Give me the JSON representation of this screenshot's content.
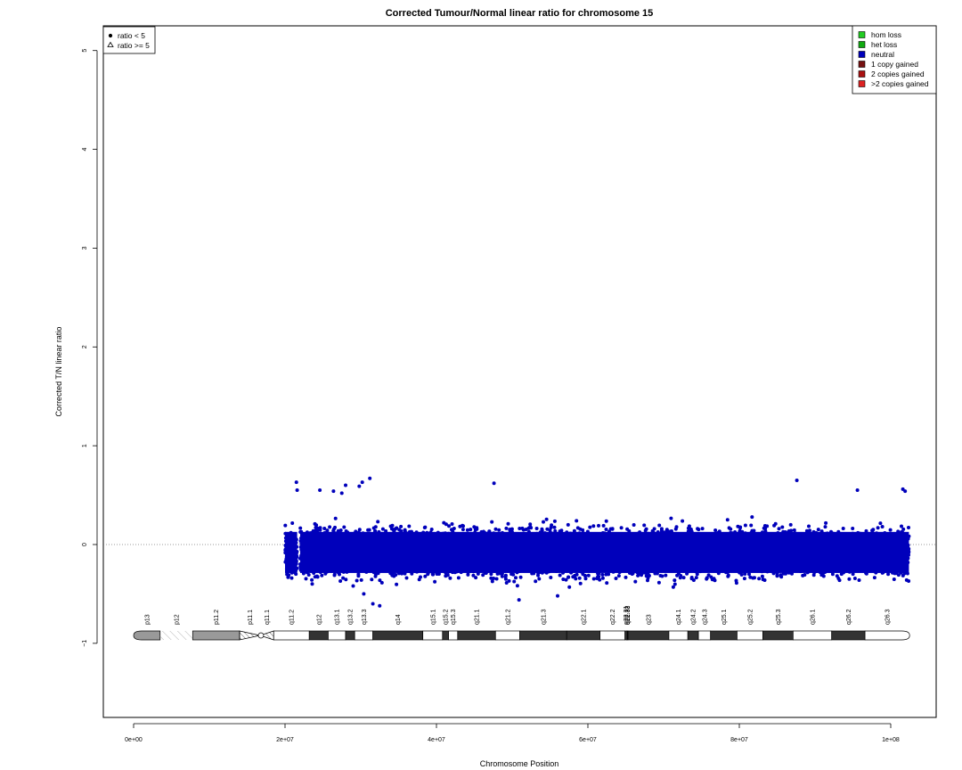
{
  "chart_data": {
    "type": "scatter",
    "title": "Corrected Tumour/Normal linear ratio for chromosome  15",
    "xlabel": "Chromosome Position",
    "ylabel": "Corrected T/N linear ratio",
    "x_ticks": [
      {
        "value": 0,
        "label": "0e+00"
      },
      {
        "value": 20000000,
        "label": "2e+07"
      },
      {
        "value": 40000000,
        "label": "4e+07"
      },
      {
        "value": 60000000,
        "label": "6e+07"
      },
      {
        "value": 80000000,
        "label": "8e+07"
      },
      {
        "value": 100000000,
        "label": "1e+08"
      }
    ],
    "y_ticks": [
      {
        "value": -1,
        "label": "−1"
      },
      {
        "value": 0,
        "label": "0"
      },
      {
        "value": 1,
        "label": "1"
      },
      {
        "value": 2,
        "label": "2"
      },
      {
        "value": 3,
        "label": "3"
      },
      {
        "value": 4,
        "label": "4"
      },
      {
        "value": 5,
        "label": "5"
      }
    ],
    "xlim": [
      -4000000,
      106000000
    ],
    "ylim": [
      -1.75,
      5.25
    ],
    "reference_line_y": 0,
    "shape_legend": [
      {
        "symbol": "circle",
        "label": "ratio < 5"
      },
      {
        "symbol": "triangle",
        "label": "ratio >= 5"
      }
    ],
    "color_legend": [
      {
        "label": "hom loss",
        "color": "#22cc22"
      },
      {
        "label": "het loss",
        "color": "#11aa11"
      },
      {
        "label": "neutral",
        "color": "#0000bb"
      },
      {
        "label": "1 copy gained",
        "color": "#771111"
      },
      {
        "label": "2 copies gained",
        "color": "#aa1111"
      },
      {
        "label": ">2 copies gained",
        "color": "#dd2222"
      }
    ],
    "series": [
      {
        "name": "neutral",
        "color": "#0000bb",
        "segments": [
          {
            "x_start": 20000000,
            "x_end": 21600000,
            "center": -0.08,
            "spread": 0.26
          },
          {
            "x_start": 22000000,
            "x_end": 102400000,
            "center": -0.08,
            "spread": 0.26
          }
        ],
        "outliers": [
          {
            "x": 21500000,
            "y": 0.63
          },
          {
            "x": 21600000,
            "y": 0.55
          },
          {
            "x": 24600000,
            "y": 0.55
          },
          {
            "x": 26400000,
            "y": 0.54
          },
          {
            "x": 27500000,
            "y": 0.52
          },
          {
            "x": 28000000,
            "y": 0.6
          },
          {
            "x": 29800000,
            "y": 0.59
          },
          {
            "x": 30200000,
            "y": 0.63
          },
          {
            "x": 31200000,
            "y": 0.67
          },
          {
            "x": 47600000,
            "y": 0.62
          },
          {
            "x": 87600000,
            "y": 0.65
          },
          {
            "x": 95600000,
            "y": 0.55
          },
          {
            "x": 101600000,
            "y": 0.56
          },
          {
            "x": 101900000,
            "y": 0.54
          },
          {
            "x": 31600000,
            "y": -0.6
          },
          {
            "x": 32500000,
            "y": -0.62
          },
          {
            "x": 50900000,
            "y": -0.56
          },
          {
            "x": 30400000,
            "y": -0.5
          },
          {
            "x": 56000000,
            "y": -0.52
          }
        ]
      }
    ],
    "ideogram": {
      "y": -0.92,
      "bands": [
        {
          "name": "p13",
          "start": 0,
          "end": 3500000,
          "stain": "gvar"
        },
        {
          "name": "p12",
          "start": 3500000,
          "end": 7800000,
          "stain": "stalk"
        },
        {
          "name": "p11.2",
          "start": 7800000,
          "end": 14000000,
          "stain": "gvar"
        },
        {
          "name": "p11.1",
          "start": 14000000,
          "end": 16700000,
          "stain": "acen"
        },
        {
          "name": "q11.1",
          "start": 16700000,
          "end": 18500000,
          "stain": "acen"
        },
        {
          "name": "q11.2",
          "start": 18500000,
          "end": 23200000,
          "stain": "gneg"
        },
        {
          "name": "q12",
          "start": 23200000,
          "end": 25700000,
          "stain": "gpos"
        },
        {
          "name": "q13.1",
          "start": 25700000,
          "end": 28000000,
          "stain": "gneg"
        },
        {
          "name": "q13.2",
          "start": 28000000,
          "end": 29200000,
          "stain": "gpos"
        },
        {
          "name": "q13.3",
          "start": 29200000,
          "end": 31600000,
          "stain": "gneg"
        },
        {
          "name": "q14",
          "start": 31600000,
          "end": 38200000,
          "stain": "gpos"
        },
        {
          "name": "q15.1",
          "start": 38200000,
          "end": 40800000,
          "stain": "gneg"
        },
        {
          "name": "q15.2",
          "start": 40800000,
          "end": 41600000,
          "stain": "gpos"
        },
        {
          "name": "q15.3",
          "start": 41600000,
          "end": 42800000,
          "stain": "gneg"
        },
        {
          "name": "q21.1",
          "start": 42800000,
          "end": 47800000,
          "stain": "gpos"
        },
        {
          "name": "q21.2",
          "start": 47800000,
          "end": 51000000,
          "stain": "gneg"
        },
        {
          "name": "q21.3",
          "start": 51000000,
          "end": 57200000,
          "stain": "gpos"
        },
        {
          "name": "q22.1",
          "start": 57200000,
          "end": 61600000,
          "stain": "gpos"
        },
        {
          "name": "q22.2",
          "start": 61600000,
          "end": 64900000,
          "stain": "gneg"
        },
        {
          "name": "q22.31",
          "start": 64900000,
          "end": 65100000,
          "stain": "gpos"
        },
        {
          "name": "q22.32",
          "start": 65100000,
          "end": 65200000,
          "stain": "gneg"
        },
        {
          "name": "q22.33",
          "start": 65200000,
          "end": 65300000,
          "stain": "gpos"
        },
        {
          "name": "q23",
          "start": 65300000,
          "end": 70700000,
          "stain": "gpos"
        },
        {
          "name": "q24.1",
          "start": 70700000,
          "end": 73200000,
          "stain": "gneg"
        },
        {
          "name": "q24.2",
          "start": 73200000,
          "end": 74600000,
          "stain": "gpos"
        },
        {
          "name": "q24.3",
          "start": 74600000,
          "end": 76200000,
          "stain": "gneg"
        },
        {
          "name": "q25.1",
          "start": 76200000,
          "end": 79700000,
          "stain": "gpos"
        },
        {
          "name": "q25.2",
          "start": 79700000,
          "end": 83100000,
          "stain": "gneg"
        },
        {
          "name": "q25.3",
          "start": 83100000,
          "end": 87100000,
          "stain": "gpos"
        },
        {
          "name": "q26.1",
          "start": 87100000,
          "end": 92200000,
          "stain": "gneg"
        },
        {
          "name": "q26.2",
          "start": 92200000,
          "end": 96600000,
          "stain": "gpos"
        },
        {
          "name": "q26.3",
          "start": 96600000,
          "end": 102500000,
          "stain": "gneg"
        }
      ]
    },
    "grid": false
  }
}
